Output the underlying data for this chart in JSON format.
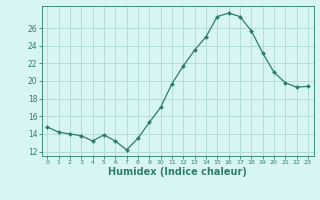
{
  "x": [
    0,
    1,
    2,
    3,
    4,
    5,
    6,
    7,
    8,
    9,
    10,
    11,
    12,
    13,
    14,
    15,
    16,
    17,
    18,
    19,
    20,
    21,
    22,
    23
  ],
  "y": [
    14.8,
    14.2,
    14.0,
    13.8,
    13.2,
    13.9,
    13.2,
    12.2,
    13.5,
    15.3,
    17.0,
    19.7,
    21.7,
    23.5,
    25.0,
    27.3,
    27.7,
    27.3,
    25.7,
    23.2,
    21.0,
    19.8,
    19.3,
    19.4
  ],
  "line_color": "#2e7d6e",
  "marker": "D",
  "marker_size": 2,
  "bg_color": "#d8f5f5",
  "grid_color": "#b0d8d8",
  "tick_color": "#2e7d6e",
  "xlabel": "Humidex (Indice chaleur)",
  "xlabel_fontsize": 7,
  "xlim": [
    -0.5,
    23.5
  ],
  "ylim": [
    11.5,
    28.5
  ],
  "yticks": [
    12,
    14,
    16,
    18,
    20,
    22,
    24,
    26
  ],
  "xticks": [
    0,
    1,
    2,
    3,
    4,
    5,
    6,
    7,
    8,
    9,
    10,
    11,
    12,
    13,
    14,
    15,
    16,
    17,
    18,
    19,
    20,
    21,
    22,
    23
  ],
  "xtick_labels": [
    "0",
    "1",
    "2",
    "3",
    "4",
    "5",
    "6",
    "7",
    "8",
    "9",
    "10",
    "11",
    "12",
    "13",
    "14",
    "15",
    "16",
    "17",
    "18",
    "19",
    "20",
    "21",
    "22",
    "23"
  ]
}
